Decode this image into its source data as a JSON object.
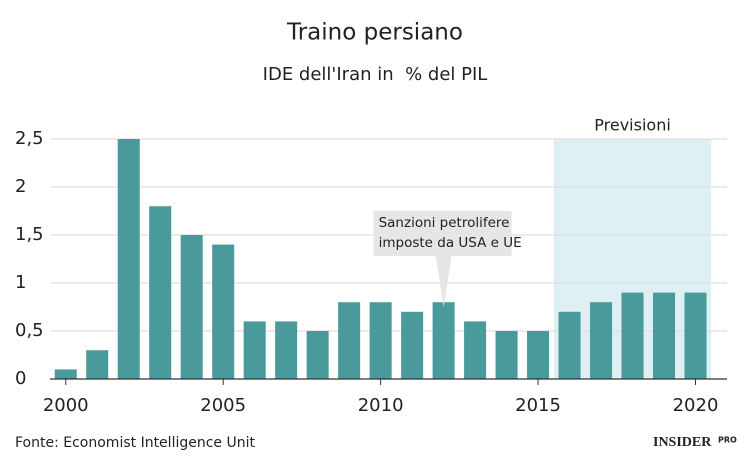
{
  "chart_data": {
    "type": "bar",
    "title": "Traino persiano",
    "subtitle": "IDE dell'Iran in  % del PIL",
    "x": [
      2000,
      2001,
      2002,
      2003,
      2004,
      2005,
      2006,
      2007,
      2008,
      2009,
      2010,
      2011,
      2012,
      2013,
      2014,
      2015,
      2016,
      2017,
      2018,
      2019,
      2020
    ],
    "values": [
      0.1,
      0.3,
      2.5,
      1.8,
      1.5,
      1.4,
      0.6,
      0.6,
      0.5,
      0.8,
      0.8,
      0.7,
      0.8,
      0.6,
      0.5,
      0.5,
      0.7,
      0.8,
      0.9,
      0.9,
      0.9
    ],
    "color": "#4a9a9b",
    "xlim": [
      1999.5,
      2021
    ],
    "xticks": [
      2000,
      2005,
      2010,
      2015,
      2020
    ],
    "ylim": [
      0,
      2.5
    ],
    "yticks": [
      0,
      {
        "value": 0.5,
        "label": "0,5"
      },
      1,
      {
        "value": 1.5,
        "label": "1,5"
      },
      2,
      {
        "value": 2.5,
        "label": "2,5"
      }
    ],
    "grid": true,
    "shaded_region": {
      "label": "Previsioni",
      "xrange": [
        2015.5,
        2020.5
      ],
      "color": "#dff0f4"
    },
    "annotation": {
      "lines": [
        "Sanzioni petrolifere",
        "imposte da USA e UE"
      ],
      "x": 2012
    },
    "source": "Fonte: Economist Intelligence Unit",
    "logo": {
      "main": "INSIDER",
      "sub": "PRO"
    }
  }
}
